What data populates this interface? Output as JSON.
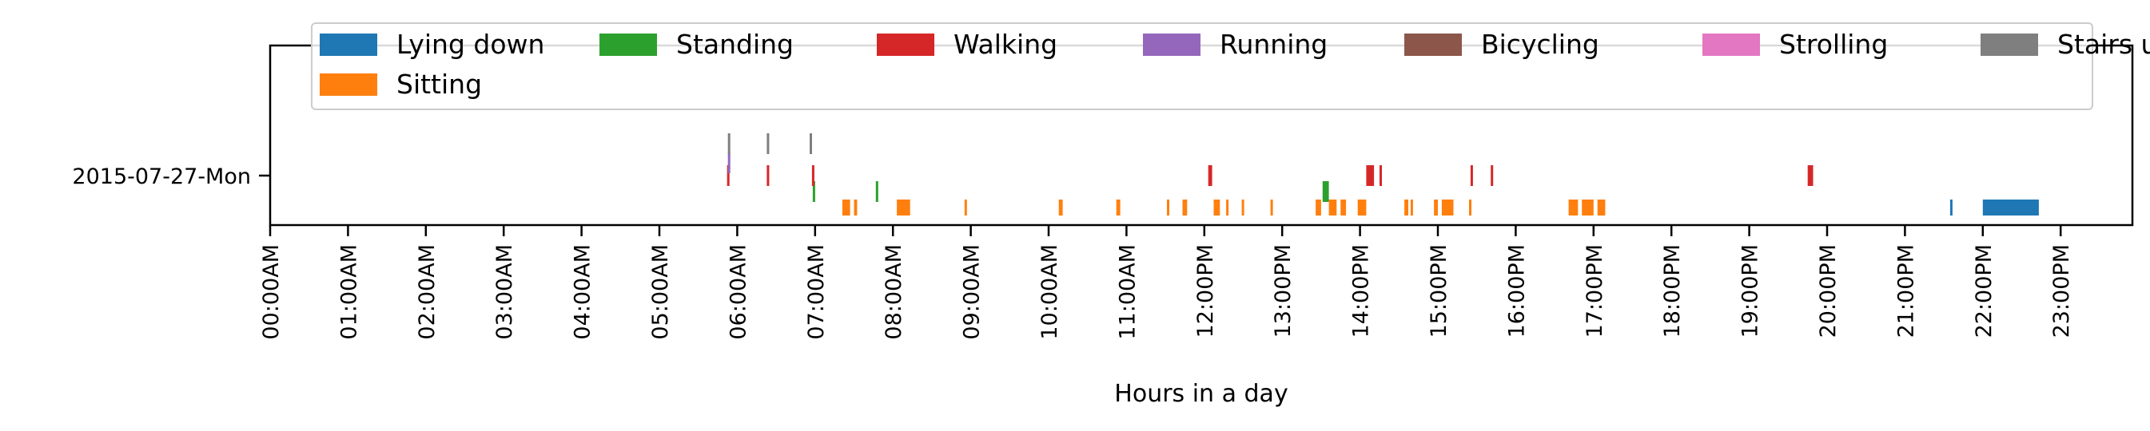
{
  "chart_data": {
    "type": "timeline",
    "xlabel": "Hours in a day",
    "ylabel": "",
    "xlim": [
      0,
      24
    ],
    "x_ticks": [
      "00:00AM",
      "01:00AM",
      "02:00AM",
      "03:00AM",
      "04:00AM",
      "05:00AM",
      "06:00AM",
      "07:00AM",
      "08:00AM",
      "09:00AM",
      "10:00AM",
      "11:00AM",
      "12:00PM",
      "13:00PM",
      "14:00PM",
      "15:00PM",
      "16:00PM",
      "17:00PM",
      "18:00PM",
      "19:00PM",
      "20:00PM",
      "21:00PM",
      "22:00PM",
      "23:00PM"
    ],
    "y_categories": [
      "2015-07-27-Mon"
    ],
    "legend_placement": "top",
    "grid": false,
    "series": [
      {
        "name": "Lying down",
        "color": "#1f77b4",
        "level": -1.0,
        "intervals": [
          [
            21.58,
            21.61
          ],
          [
            22.0,
            22.72
          ]
        ]
      },
      {
        "name": "Sitting",
        "color": "#ff7f0e",
        "level": -1.0,
        "intervals": [
          [
            7.35,
            7.45
          ],
          [
            7.5,
            7.54
          ],
          [
            8.05,
            8.22
          ],
          [
            8.92,
            8.95
          ],
          [
            10.13,
            10.18
          ],
          [
            10.87,
            10.92
          ],
          [
            11.52,
            11.55
          ],
          [
            11.72,
            11.78
          ],
          [
            12.12,
            12.2
          ],
          [
            12.28,
            12.31
          ],
          [
            12.48,
            12.51
          ],
          [
            12.85,
            12.88
          ],
          [
            13.43,
            13.5
          ],
          [
            13.6,
            13.7
          ],
          [
            13.75,
            13.82
          ],
          [
            13.97,
            14.08
          ],
          [
            14.57,
            14.62
          ],
          [
            14.65,
            14.68
          ],
          [
            14.95,
            15.0
          ],
          [
            15.05,
            15.2
          ],
          [
            15.4,
            15.43
          ],
          [
            16.68,
            16.8
          ],
          [
            16.85,
            17.0
          ],
          [
            17.05,
            17.15
          ]
        ]
      },
      {
        "name": "Standing",
        "color": "#2ca02c",
        "level": -0.5,
        "intervals": [
          [
            6.97,
            6.99
          ],
          [
            7.78,
            7.8
          ],
          [
            13.52,
            13.6
          ]
        ]
      },
      {
        "name": "Walking",
        "color": "#d62728",
        "level": 0.0,
        "intervals": [
          [
            5.87,
            5.9
          ],
          [
            6.38,
            6.41
          ],
          [
            6.96,
            6.99
          ],
          [
            12.05,
            12.1
          ],
          [
            14.08,
            14.18
          ],
          [
            14.25,
            14.28
          ],
          [
            15.42,
            15.45
          ],
          [
            15.68,
            15.71
          ],
          [
            19.75,
            19.82
          ]
        ]
      },
      {
        "name": "Running",
        "color": "#9467bd",
        "level": 0.4,
        "intervals": [
          [
            5.88,
            5.91
          ]
        ]
      },
      {
        "name": "Bicycling",
        "color": "#8c564b",
        "level": 0.5,
        "intervals": []
      },
      {
        "name": "Strolling",
        "color": "#e377c2",
        "level": 0.5,
        "intervals": []
      },
      {
        "name": "Stairs up/down",
        "color": "#7f7f7f",
        "level": 1.0,
        "intervals": [
          [
            5.88,
            5.91
          ],
          [
            6.38,
            6.41
          ],
          [
            6.93,
            6.96
          ]
        ]
      }
    ]
  }
}
